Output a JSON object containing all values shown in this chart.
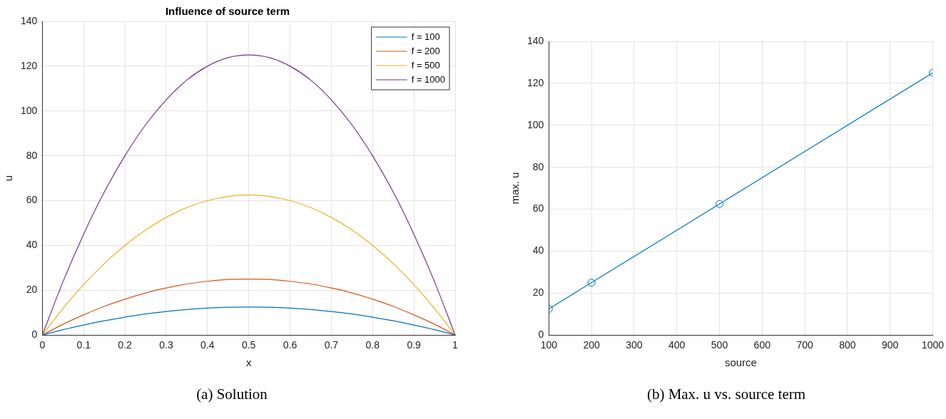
{
  "chart_data": [
    {
      "type": "line",
      "title": "Influence of source term",
      "xlabel": "x",
      "ylabel": "u",
      "annotations": [
        "(a) Solution"
      ],
      "x": [
        0,
        0.05,
        0.1,
        0.15,
        0.2,
        0.25,
        0.3,
        0.35,
        0.4,
        0.45,
        0.5,
        0.55,
        0.6,
        0.65,
        0.7,
        0.75,
        0.8,
        0.85,
        0.9,
        0.95,
        1
      ],
      "series": [
        {
          "name": "f = 100",
          "color": "#0072bd",
          "values": [
            0,
            2.4,
            4.5,
            6.4,
            8,
            9.4,
            10.5,
            11.4,
            12,
            12.4,
            12.5,
            12.4,
            12,
            11.4,
            10.5,
            9.4,
            8,
            6.4,
            4.5,
            2.4,
            0
          ]
        },
        {
          "name": "f = 200",
          "color": "#d95319",
          "values": [
            0,
            4.8,
            9,
            12.8,
            16,
            18.8,
            21,
            22.8,
            24,
            24.8,
            25,
            24.8,
            24,
            22.8,
            21,
            18.8,
            16,
            12.8,
            9,
            4.8,
            0
          ]
        },
        {
          "name": "f = 500",
          "color": "#edb120",
          "values": [
            0,
            11.9,
            22.5,
            31.9,
            40,
            46.9,
            52.5,
            56.9,
            60,
            61.9,
            62.5,
            61.9,
            60,
            56.9,
            52.5,
            46.9,
            40,
            31.9,
            22.5,
            11.9,
            0
          ]
        },
        {
          "name": "f = 1000",
          "color": "#7e2f8e",
          "values": [
            0,
            23.8,
            45,
            63.8,
            80,
            93.8,
            105,
            113.8,
            120,
            123.8,
            125,
            123.8,
            120,
            113.8,
            105,
            93.8,
            80,
            63.8,
            45,
            23.8,
            0
          ]
        }
      ],
      "xlim": [
        0,
        1
      ],
      "xticks": [
        0,
        0.1,
        0.2,
        0.3,
        0.4,
        0.5,
        0.6,
        0.7,
        0.8,
        0.9,
        1
      ],
      "ylim": [
        0,
        140
      ],
      "yticks": [
        0,
        20,
        40,
        60,
        80,
        100,
        120,
        140
      ],
      "grid": true,
      "legend": "top right"
    },
    {
      "type": "line",
      "xlabel": "source",
      "ylabel": "max. u",
      "annotations": [
        "(b) Max. u vs. source term"
      ],
      "x": [
        100,
        200,
        500,
        1000
      ],
      "series": [
        {
          "color": "#0072bd",
          "values": [
            12.5,
            25,
            62.5,
            125
          ]
        }
      ],
      "xlim": [
        100,
        1000
      ],
      "xticks": [
        100,
        200,
        300,
        400,
        500,
        600,
        700,
        800,
        900,
        1000
      ],
      "ylim": [
        0,
        140
      ],
      "yticks": [
        0,
        20,
        40,
        60,
        80,
        100,
        120,
        140
      ],
      "grid": true,
      "marker": "circle"
    }
  ]
}
